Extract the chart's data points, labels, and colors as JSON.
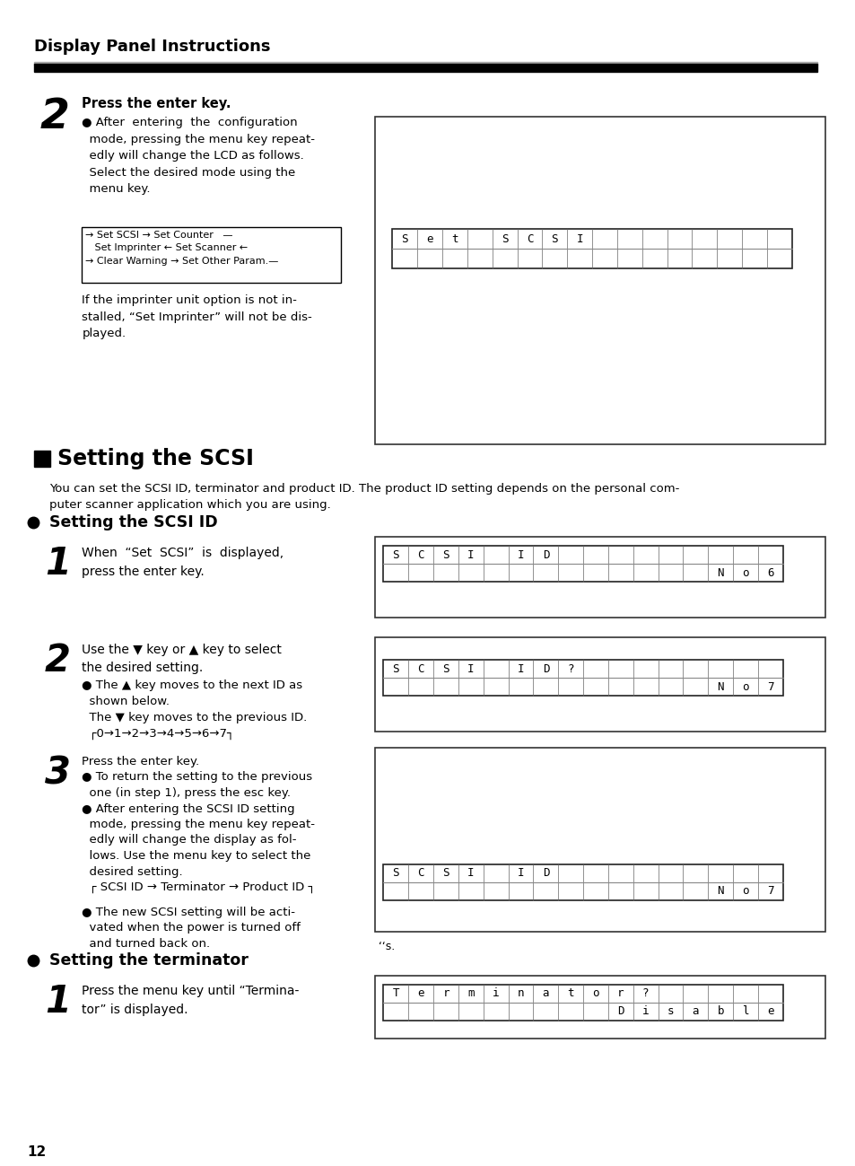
{
  "title": "Display Panel Instructions",
  "bg_color": "#ffffff",
  "text_color": "#000000",
  "page_number": "12",
  "section_heading": "Setting the SCSI",
  "section_intro": "You can set the SCSI ID, terminator and product ID. The product ID setting depends on the personal com-\nputer scanner application which you are using.",
  "subsection1": "Setting the SCSI ID",
  "subsection2": "Setting the terminator",
  "lcd1_row1": [
    "S",
    "e",
    "t",
    " ",
    "S",
    "C",
    "S",
    "I",
    " ",
    " ",
    " ",
    " ",
    " ",
    " ",
    " ",
    " "
  ],
  "lcd1_row2": [
    " ",
    " ",
    " ",
    " ",
    " ",
    " ",
    " ",
    " ",
    " ",
    " ",
    " ",
    " ",
    " ",
    " ",
    " ",
    " "
  ],
  "lcd2_row1": [
    "S",
    "C",
    "S",
    "I",
    " ",
    "I",
    "D",
    " ",
    " ",
    " ",
    " ",
    " ",
    " ",
    " ",
    " ",
    " "
  ],
  "lcd2_row2": [
    " ",
    " ",
    " ",
    " ",
    " ",
    " ",
    " ",
    " ",
    " ",
    " ",
    " ",
    " ",
    " ",
    "N",
    "o",
    ".",
    " "
  ],
  "lcd2_last": "6",
  "lcd3_row1": [
    "S",
    "C",
    "S",
    "I",
    " ",
    "I",
    "D",
    "?",
    " ",
    " ",
    " ",
    " ",
    " ",
    " ",
    " ",
    " "
  ],
  "lcd3_row2": [
    " ",
    " ",
    " ",
    " ",
    " ",
    " ",
    " ",
    " ",
    " ",
    " ",
    " ",
    " ",
    " ",
    "N",
    "o",
    ".",
    " "
  ],
  "lcd3_last": "7",
  "lcd4_row1": [
    "S",
    "C",
    "S",
    "I",
    " ",
    "I",
    "D",
    " ",
    " ",
    " ",
    " ",
    " ",
    " ",
    " ",
    " ",
    " "
  ],
  "lcd4_row2": [
    " ",
    " ",
    " ",
    " ",
    " ",
    " ",
    " ",
    " ",
    " ",
    " ",
    " ",
    " ",
    " ",
    "N",
    "o",
    ".",
    " "
  ],
  "lcd4_last": "7",
  "lcd5_row1": [
    "T",
    "e",
    "r",
    "m",
    "i",
    "n",
    "a",
    "t",
    "o",
    "r",
    "?",
    " ",
    " ",
    " ",
    " ",
    " "
  ],
  "lcd5_row2": [
    " ",
    " ",
    " ",
    " ",
    " ",
    " ",
    " ",
    " ",
    " ",
    "D",
    "i",
    "s",
    "a",
    "b",
    "l",
    "e"
  ]
}
